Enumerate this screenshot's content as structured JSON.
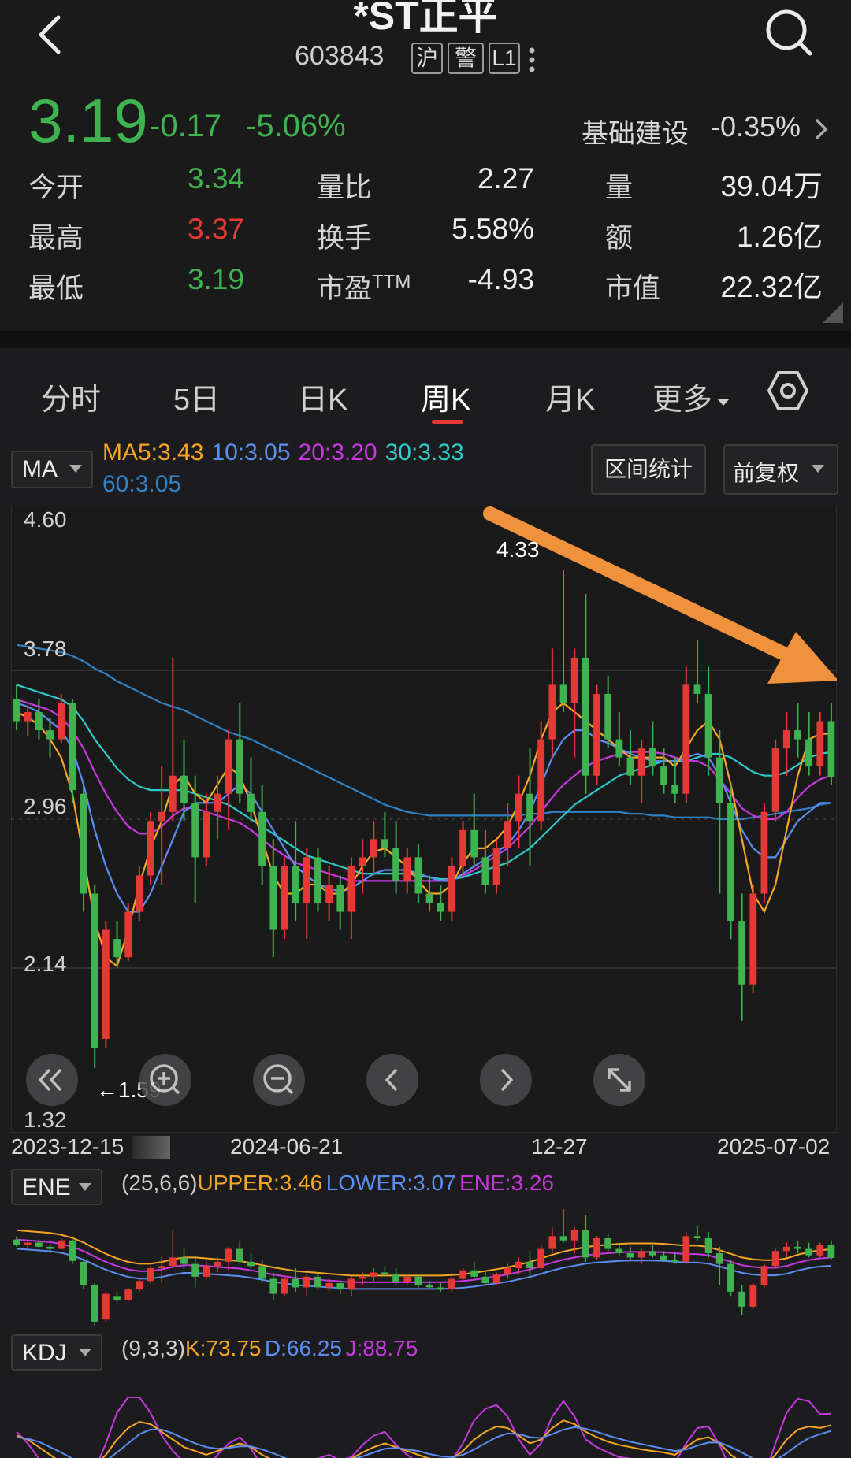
{
  "header": {
    "title": "*ST正平",
    "code": "603843",
    "tags": [
      "沪",
      "警",
      "L1"
    ],
    "price": "3.19",
    "change": "-0.17",
    "change_pct": "-5.06%",
    "sector": "基础建设",
    "sector_pct": "-0.35%"
  },
  "stats": {
    "open_label": "今开",
    "open": "3.34",
    "high_label": "最高",
    "high": "3.37",
    "low_label": "最低",
    "low": "3.19",
    "vol_ratio_label": "量比",
    "vol_ratio": "2.27",
    "turnover_label": "换手",
    "turnover": "5.58%",
    "pe_label": "市盈",
    "pe_sup": "TTM",
    "pe": "-4.93",
    "volume_label": "量",
    "volume": "39.04万",
    "amount_label": "额",
    "amount": "1.26亿",
    "mktcap_label": "市值",
    "mktcap": "22.32亿"
  },
  "tabs": [
    "分时",
    "5日",
    "日K",
    "周K",
    "月K",
    "更多"
  ],
  "active_tab": "周K",
  "ma": {
    "selector": "MA",
    "ma5": "MA5:3.43",
    "ma10": "10:3.05",
    "ma20": "20:3.20",
    "ma30": "30:3.33",
    "ma60": "60:3.05",
    "range_stats_button": "区间统计",
    "adjust_button": "前复权"
  },
  "colors": {
    "up": "#e53935",
    "down": "#3fb34f",
    "ma5": "#f5a623",
    "ma10": "#5b8ef0",
    "ma20": "#c838e0",
    "ma30": "#2ec9c9",
    "ma60": "#2f82c4",
    "arrow": "#f0923b"
  },
  "chart_data": {
    "type": "candlestick",
    "y_ticks": [
      "4.60",
      "3.78",
      "2.96",
      "2.14",
      "1.32"
    ],
    "ylim": [
      1.32,
      4.6
    ],
    "x_labels": [
      "2023-12-15",
      "2024-06-21",
      "12-27",
      "2025-07-02"
    ],
    "max_label": "4.33",
    "min_label": "←1.59",
    "ohlc": [
      [
        3.62,
        3.7,
        3.45,
        3.5
      ],
      [
        3.5,
        3.58,
        3.42,
        3.55
      ],
      [
        3.55,
        3.62,
        3.4,
        3.45
      ],
      [
        3.45,
        3.52,
        3.3,
        3.4
      ],
      [
        3.4,
        3.65,
        3.38,
        3.6
      ],
      [
        3.6,
        3.62,
        3.05,
        3.12
      ],
      [
        3.1,
        3.15,
        2.45,
        2.55
      ],
      [
        2.55,
        2.6,
        1.59,
        1.7
      ],
      [
        1.75,
        2.4,
        1.7,
        2.35
      ],
      [
        2.3,
        2.4,
        2.15,
        2.2
      ],
      [
        2.2,
        2.5,
        2.18,
        2.45
      ],
      [
        2.45,
        2.7,
        2.4,
        2.65
      ],
      [
        2.65,
        3.0,
        2.6,
        2.95
      ],
      [
        2.95,
        3.25,
        2.6,
        3.0
      ],
      [
        3.0,
        3.85,
        2.95,
        3.2
      ],
      [
        3.2,
        3.4,
        2.95,
        3.05
      ],
      [
        3.05,
        3.2,
        2.5,
        2.75
      ],
      [
        2.75,
        3.1,
        2.7,
        3.0
      ],
      [
        3.0,
        3.2,
        2.85,
        3.1
      ],
      [
        3.1,
        3.45,
        2.9,
        3.4
      ],
      [
        3.4,
        3.6,
        3.05,
        3.1
      ],
      [
        3.1,
        3.3,
        2.95,
        3.0
      ],
      [
        3.0,
        3.15,
        2.6,
        2.7
      ],
      [
        2.7,
        2.85,
        2.2,
        2.35
      ],
      [
        2.35,
        2.75,
        2.3,
        2.7
      ],
      [
        2.7,
        2.95,
        2.4,
        2.5
      ],
      [
        2.5,
        2.8,
        2.3,
        2.75
      ],
      [
        2.75,
        2.8,
        2.45,
        2.5
      ],
      [
        2.5,
        2.7,
        2.4,
        2.6
      ],
      [
        2.6,
        2.65,
        2.35,
        2.45
      ],
      [
        2.45,
        2.75,
        2.3,
        2.7
      ],
      [
        2.7,
        2.85,
        2.55,
        2.75
      ],
      [
        2.75,
        2.95,
        2.65,
        2.85
      ],
      [
        2.85,
        3.0,
        2.75,
        2.8
      ],
      [
        2.8,
        2.95,
        2.55,
        2.62
      ],
      [
        2.62,
        2.8,
        2.55,
        2.75
      ],
      [
        2.75,
        2.82,
        2.5,
        2.55
      ],
      [
        2.55,
        2.65,
        2.45,
        2.5
      ],
      [
        2.5,
        2.6,
        2.4,
        2.45
      ],
      [
        2.45,
        2.75,
        2.4,
        2.7
      ],
      [
        2.7,
        2.95,
        2.65,
        2.9
      ],
      [
        2.9,
        3.1,
        2.7,
        2.75
      ],
      [
        2.75,
        2.9,
        2.55,
        2.6
      ],
      [
        2.6,
        2.85,
        2.55,
        2.8
      ],
      [
        2.8,
        3.05,
        2.7,
        2.95
      ],
      [
        2.95,
        3.2,
        2.8,
        3.1
      ],
      [
        3.1,
        3.35,
        2.7,
        2.95
      ],
      [
        2.95,
        3.5,
        2.9,
        3.4
      ],
      [
        3.4,
        3.9,
        3.3,
        3.7
      ],
      [
        3.7,
        4.33,
        3.55,
        3.6
      ],
      [
        3.6,
        3.9,
        3.3,
        3.85
      ],
      [
        3.85,
        4.2,
        3.1,
        3.2
      ],
      [
        3.2,
        3.7,
        3.15,
        3.65
      ],
      [
        3.65,
        3.75,
        3.35,
        3.4
      ],
      [
        3.4,
        3.55,
        3.25,
        3.3
      ],
      [
        3.3,
        3.45,
        3.15,
        3.2
      ],
      [
        3.2,
        3.4,
        3.05,
        3.35
      ],
      [
        3.35,
        3.5,
        3.2,
        3.25
      ],
      [
        3.25,
        3.35,
        3.1,
        3.15
      ],
      [
        3.15,
        3.3,
        3.05,
        3.1
      ],
      [
        3.1,
        3.8,
        3.05,
        3.7
      ],
      [
        3.7,
        3.95,
        3.6,
        3.65
      ],
      [
        3.65,
        3.8,
        3.2,
        3.3
      ],
      [
        3.3,
        3.45,
        2.55,
        3.05
      ],
      [
        3.05,
        3.15,
        2.3,
        2.4
      ],
      [
        2.4,
        2.55,
        1.85,
        2.05
      ],
      [
        2.05,
        2.6,
        2.0,
        2.55
      ],
      [
        2.55,
        3.05,
        2.5,
        3.0
      ],
      [
        3.0,
        3.4,
        2.95,
        3.35
      ],
      [
        3.35,
        3.55,
        3.2,
        3.45
      ],
      [
        3.45,
        3.6,
        3.3,
        3.4
      ],
      [
        3.4,
        3.55,
        3.2,
        3.25
      ],
      [
        3.25,
        3.55,
        3.2,
        3.5
      ],
      [
        3.5,
        3.6,
        3.15,
        3.19
      ]
    ],
    "ma": {
      "ma5": [
        3.55,
        3.52,
        3.48,
        3.4,
        3.3,
        3.1,
        2.75,
        2.4,
        2.2,
        2.15,
        2.35,
        2.6,
        2.8,
        2.95,
        3.15,
        3.2,
        3.1,
        3.05,
        3.15,
        3.25,
        3.2,
        3.05,
        2.85,
        2.65,
        2.55,
        2.55,
        2.6,
        2.6,
        2.55,
        2.55,
        2.6,
        2.7,
        2.78,
        2.8,
        2.75,
        2.7,
        2.62,
        2.55,
        2.55,
        2.6,
        2.72,
        2.8,
        2.8,
        2.85,
        2.92,
        3.05,
        3.2,
        3.4,
        3.55,
        3.6,
        3.55,
        3.5,
        3.45,
        3.4,
        3.35,
        3.3,
        3.3,
        3.3,
        3.3,
        3.25,
        3.35,
        3.45,
        3.5,
        3.4,
        3.15,
        2.85,
        2.55,
        2.45,
        2.6,
        2.9,
        3.2,
        3.4,
        3.43,
        3.43
      ],
      "ma10": [
        3.6,
        3.58,
        3.55,
        3.5,
        3.45,
        3.35,
        3.15,
        2.9,
        2.7,
        2.55,
        2.45,
        2.45,
        2.55,
        2.7,
        2.85,
        3.0,
        3.05,
        3.05,
        3.05,
        3.1,
        3.15,
        3.1,
        3.0,
        2.9,
        2.8,
        2.7,
        2.65,
        2.6,
        2.58,
        2.56,
        2.58,
        2.62,
        2.66,
        2.68,
        2.68,
        2.68,
        2.66,
        2.64,
        2.62,
        2.62,
        2.66,
        2.7,
        2.74,
        2.78,
        2.82,
        2.9,
        3.0,
        3.15,
        3.3,
        3.4,
        3.45,
        3.45,
        3.4,
        3.38,
        3.35,
        3.32,
        3.3,
        3.28,
        3.28,
        3.28,
        3.3,
        3.32,
        3.3,
        3.2,
        3.05,
        2.9,
        2.8,
        2.75,
        2.75,
        2.85,
        2.95,
        3.0,
        3.05,
        3.05
      ],
      "ma20": [
        3.62,
        3.6,
        3.58,
        3.56,
        3.52,
        3.45,
        3.35,
        3.22,
        3.1,
        3.0,
        2.92,
        2.88,
        2.88,
        2.92,
        2.98,
        3.02,
        3.02,
        3.0,
        2.98,
        2.96,
        2.94,
        2.9,
        2.85,
        2.8,
        2.76,
        2.72,
        2.7,
        2.68,
        2.66,
        2.64,
        2.62,
        2.62,
        2.62,
        2.62,
        2.62,
        2.62,
        2.62,
        2.62,
        2.62,
        2.63,
        2.65,
        2.68,
        2.72,
        2.76,
        2.8,
        2.86,
        2.92,
        3.0,
        3.08,
        3.15,
        3.2,
        3.25,
        3.28,
        3.3,
        3.32,
        3.33,
        3.33,
        3.33,
        3.32,
        3.3,
        3.28,
        3.28,
        3.25,
        3.18,
        3.1,
        3.02,
        2.98,
        2.96,
        2.96,
        3.0,
        3.08,
        3.14,
        3.18,
        3.2
      ],
      "ma30": [
        3.7,
        3.68,
        3.66,
        3.64,
        3.62,
        3.58,
        3.5,
        3.4,
        3.32,
        3.24,
        3.18,
        3.14,
        3.12,
        3.12,
        3.12,
        3.12,
        3.1,
        3.08,
        3.06,
        3.04,
        3.0,
        2.96,
        2.92,
        2.88,
        2.84,
        2.8,
        2.76,
        2.74,
        2.72,
        2.7,
        2.68,
        2.66,
        2.66,
        2.66,
        2.66,
        2.66,
        2.65,
        2.64,
        2.63,
        2.63,
        2.64,
        2.66,
        2.68,
        2.7,
        2.72,
        2.76,
        2.8,
        2.86,
        2.92,
        2.98,
        3.04,
        3.08,
        3.12,
        3.16,
        3.2,
        3.22,
        3.24,
        3.26,
        3.28,
        3.28,
        3.28,
        3.3,
        3.32,
        3.32,
        3.3,
        3.26,
        3.22,
        3.2,
        3.2,
        3.22,
        3.26,
        3.3,
        3.32,
        3.33
      ],
      "ma60": [
        3.92,
        3.91,
        3.9,
        3.89,
        3.88,
        3.86,
        3.83,
        3.79,
        3.76,
        3.72,
        3.69,
        3.66,
        3.63,
        3.6,
        3.58,
        3.56,
        3.53,
        3.5,
        3.47,
        3.44,
        3.42,
        3.4,
        3.37,
        3.34,
        3.31,
        3.28,
        3.25,
        3.22,
        3.19,
        3.16,
        3.13,
        3.1,
        3.07,
        3.04,
        3.02,
        3.0,
        2.99,
        2.98,
        2.98,
        2.98,
        2.98,
        2.98,
        2.98,
        2.98,
        2.98,
        2.98,
        2.99,
        2.99,
        3.0,
        3.0,
        3.0,
        3.0,
        3.0,
        3.0,
        3.0,
        2.99,
        2.99,
        2.98,
        2.98,
        2.97,
        2.97,
        2.97,
        2.97,
        2.96,
        2.96,
        2.96,
        2.97,
        2.98,
        2.99,
        3.0,
        3.01,
        3.02,
        3.04,
        3.05
      ]
    }
  },
  "ene": {
    "selector": "ENE",
    "params": "(25,6,6)",
    "upper": "UPPER:3.46",
    "lower": "LOWER:3.07",
    "ene": "ENE:3.26"
  },
  "kdj": {
    "selector": "KDJ",
    "params": "(9,3,3)",
    "k": "K:73.75",
    "d": "D:66.25",
    "j": "J:88.75",
    "k_series": [
      60,
      55,
      45,
      35,
      25,
      18,
      15,
      20,
      35,
      55,
      70,
      78,
      75,
      65,
      55,
      45,
      40,
      35,
      40,
      45,
      50,
      45,
      35,
      28,
      22,
      20,
      22,
      28,
      30,
      28,
      30,
      38,
      45,
      50,
      45,
      40,
      35,
      30,
      28,
      30,
      40,
      55,
      65,
      72,
      70,
      60,
      50,
      55,
      70,
      80,
      75,
      65,
      58,
      52,
      48,
      45,
      42,
      40,
      38,
      35,
      45,
      55,
      58,
      50,
      35,
      25,
      18,
      20,
      35,
      55,
      68,
      72,
      70,
      73.75
    ],
    "d_series": [
      58,
      56,
      52,
      45,
      38,
      30,
      24,
      22,
      27,
      38,
      50,
      62,
      68,
      68,
      63,
      56,
      50,
      45,
      43,
      44,
      46,
      46,
      42,
      37,
      31,
      27,
      25,
      26,
      28,
      28,
      29,
      33,
      38,
      43,
      44,
      42,
      40,
      36,
      33,
      32,
      35,
      42,
      50,
      58,
      63,
      62,
      58,
      57,
      62,
      68,
      71,
      69,
      65,
      60,
      56,
      52,
      49,
      46,
      43,
      40,
      42,
      47,
      51,
      51,
      45,
      38,
      30,
      26,
      28,
      37,
      48,
      57,
      62,
      66.25
    ],
    "j_series": [
      65,
      50,
      30,
      15,
      5,
      0,
      0,
      15,
      50,
      90,
      110,
      110,
      90,
      60,
      40,
      25,
      20,
      15,
      35,
      50,
      58,
      43,
      20,
      10,
      5,
      5,
      15,
      30,
      35,
      28,
      32,
      48,
      60,
      65,
      48,
      35,
      25,
      18,
      18,
      28,
      50,
      80,
      95,
      100,
      85,
      55,
      35,
      50,
      85,
      105,
      85,
      55,
      45,
      38,
      32,
      30,
      28,
      28,
      28,
      25,
      50,
      70,
      72,
      48,
      15,
      0,
      0,
      8,
      50,
      90,
      108,
      105,
      88,
      88.75
    ]
  },
  "nav_icons": [
    "double-left-icon",
    "zoom-in-icon",
    "zoom-out-icon",
    "chevron-left-icon",
    "chevron-right-icon",
    "expand-icon"
  ]
}
